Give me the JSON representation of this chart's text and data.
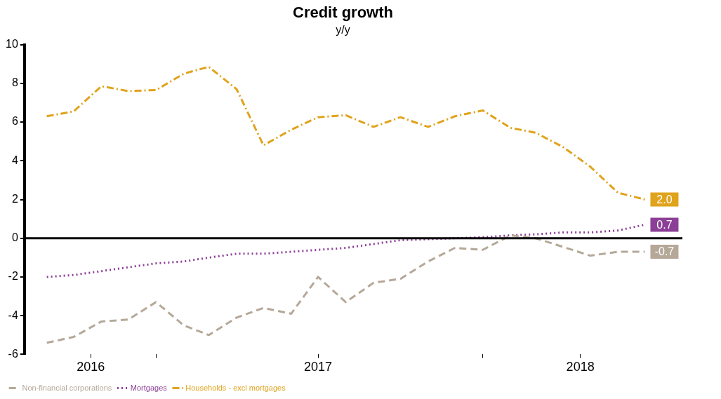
{
  "chart_data": {
    "type": "line",
    "title": "Credit growth",
    "subtitle": "y/y",
    "x": [
      "2016-09",
      "2016-10",
      "2016-11",
      "2016-12",
      "2017-01",
      "2017-02",
      "2017-03",
      "2017-04",
      "2017-05",
      "2017-06",
      "2017-07",
      "2017-08",
      "2017-09",
      "2017-10",
      "2017-11",
      "2017-12",
      "2018-01",
      "2018-02",
      "2018-03",
      "2018-04",
      "2018-05",
      "2018-06",
      "2018-07"
    ],
    "xlim": [
      "2016-08-07",
      "2018-08-12"
    ],
    "xticks": [
      {
        "value": "2016-10-20",
        "label": "2016"
      },
      {
        "value": "2017-01",
        "label": null
      },
      {
        "value": "2017-07-01",
        "label": "2017"
      },
      {
        "value": "2018-01",
        "label": null
      },
      {
        "value": "2018-04-20",
        "label": "2018"
      }
    ],
    "ylim": [
      -6,
      10
    ],
    "yticks": [
      -6,
      -4,
      -2,
      0,
      2,
      4,
      6,
      8,
      10
    ],
    "series": [
      {
        "name": "Non-financial corporations",
        "color": "#b5a898",
        "line_style": "dashed",
        "values": [
          -5.4,
          -5.1,
          -4.3,
          -4.2,
          -3.3,
          -4.5,
          -5.0,
          -4.1,
          -3.6,
          -3.9,
          -2.0,
          -3.3,
          -2.3,
          -2.1,
          -1.2,
          -0.5,
          -0.6,
          0.15,
          0.0,
          -0.45,
          -0.9,
          -0.7,
          -0.7
        ],
        "value_labels": [
          null,
          null,
          null,
          null,
          null,
          null,
          null,
          null,
          null,
          null,
          null,
          null,
          null,
          null,
          null,
          null,
          null,
          null,
          null,
          null,
          null,
          null,
          "-0.7"
        ]
      },
      {
        "name": "Mortgages",
        "color": "#8b3f96",
        "line_style": "dotted",
        "values": [
          -2.0,
          -1.9,
          -1.7,
          -1.5,
          -1.3,
          -1.2,
          -1.0,
          -0.8,
          -0.8,
          -0.7,
          -0.6,
          -0.5,
          -0.3,
          -0.1,
          -0.05,
          0.0,
          0.05,
          0.15,
          0.2,
          0.3,
          0.3,
          0.4,
          0.7
        ],
        "value_labels": [
          null,
          null,
          null,
          null,
          null,
          null,
          null,
          null,
          null,
          null,
          null,
          null,
          null,
          null,
          null,
          null,
          null,
          null,
          null,
          null,
          null,
          null,
          "0.7"
        ]
      },
      {
        "name": "Households - excl mortgages",
        "color": "#e0a31c",
        "line_style": "dashdot",
        "values": [
          6.3,
          6.55,
          7.85,
          7.6,
          7.65,
          8.5,
          8.85,
          7.7,
          4.8,
          5.6,
          6.25,
          6.35,
          5.75,
          6.25,
          5.75,
          6.3,
          6.6,
          5.7,
          5.45,
          4.7,
          3.7,
          2.35,
          2.0
        ],
        "value_labels": [
          null,
          null,
          null,
          null,
          null,
          null,
          null,
          null,
          null,
          null,
          null,
          null,
          null,
          null,
          null,
          null,
          null,
          null,
          null,
          null,
          null,
          null,
          "2.0"
        ]
      }
    ],
    "ref_lines": [
      {
        "axis": "y",
        "value": 0,
        "color": "#000000",
        "line_style": "solid"
      }
    ],
    "grid": false,
    "legend": "bottom left",
    "marker": "none"
  }
}
